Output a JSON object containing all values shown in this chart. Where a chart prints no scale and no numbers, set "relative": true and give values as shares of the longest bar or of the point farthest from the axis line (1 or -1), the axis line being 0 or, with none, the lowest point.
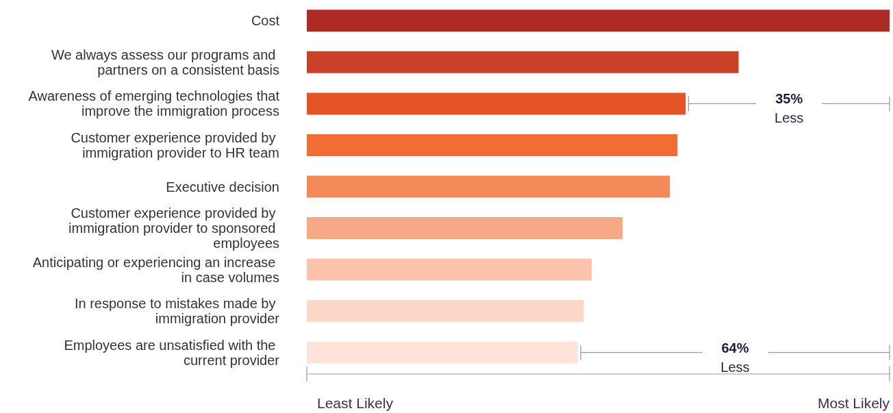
{
  "chart_data": {
    "type": "bar",
    "orientation": "horizontal",
    "relative": true,
    "categories": [
      "Cost",
      "We always assess our programs and partners on a consistent basis",
      "Awareness of emerging technologies that improve the immigration process",
      "Customer experience provided by immigration provider to HR team",
      "Executive decision",
      "Customer experience provided by immigration provider to sponsored employees",
      "Anticipating or experiencing an increase in case volumes",
      "In response to mistakes made by immigration provider",
      "Employees are unsatisfied with the current provider"
    ],
    "values": [
      1,
      0.741,
      0.65,
      0.636,
      0.623,
      0.542,
      0.489,
      0.475,
      0.465
    ],
    "colors": [
      "#ad2a25",
      "#cb4127",
      "#e55427",
      "#f26c35",
      "#f5895a",
      "#f7a987",
      "#fbc3ab",
      "#fcd6c7",
      "#fde3d9"
    ],
    "annotations": [
      "35% Less",
      "64% Less",
      "Least Likely",
      "Most Likely"
    ]
  }
}
